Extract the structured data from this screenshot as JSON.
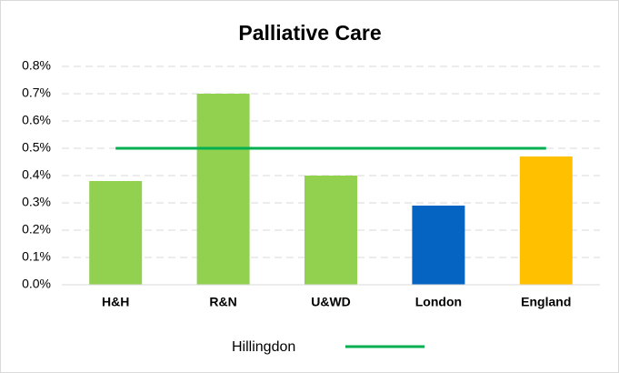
{
  "chart_data": {
    "type": "bar",
    "title": "Palliative Care",
    "categories": [
      "H&H",
      "R&N",
      "U&WD",
      "London",
      "England"
    ],
    "values": [
      0.38,
      0.7,
      0.4,
      0.29,
      0.47
    ],
    "colors": [
      "#92d050",
      "#92d050",
      "#92d050",
      "#0563c1",
      "#ffc000"
    ],
    "series": [
      {
        "name": "Hillingdon",
        "type": "line",
        "color": "#00b050",
        "values": [
          0.5,
          0.5,
          0.5,
          0.5,
          0.5
        ]
      }
    ],
    "ylim": [
      0,
      0.8
    ],
    "yticks": [
      {
        "value": 0,
        "label": "0.0%"
      },
      {
        "value": 0.1,
        "label": "0.1%"
      },
      {
        "value": 0.2,
        "label": "0.2%"
      },
      {
        "value": 0.3,
        "label": "0.3%"
      },
      {
        "value": 0.4,
        "label": "0.4%"
      },
      {
        "value": 0.5,
        "label": "0.5%"
      },
      {
        "value": 0.6,
        "label": "0.6%"
      },
      {
        "value": 0.7,
        "label": "0.7%"
      },
      {
        "value": 0.8,
        "label": "0.8%"
      }
    ],
    "grid": true,
    "legend": "bottom"
  }
}
